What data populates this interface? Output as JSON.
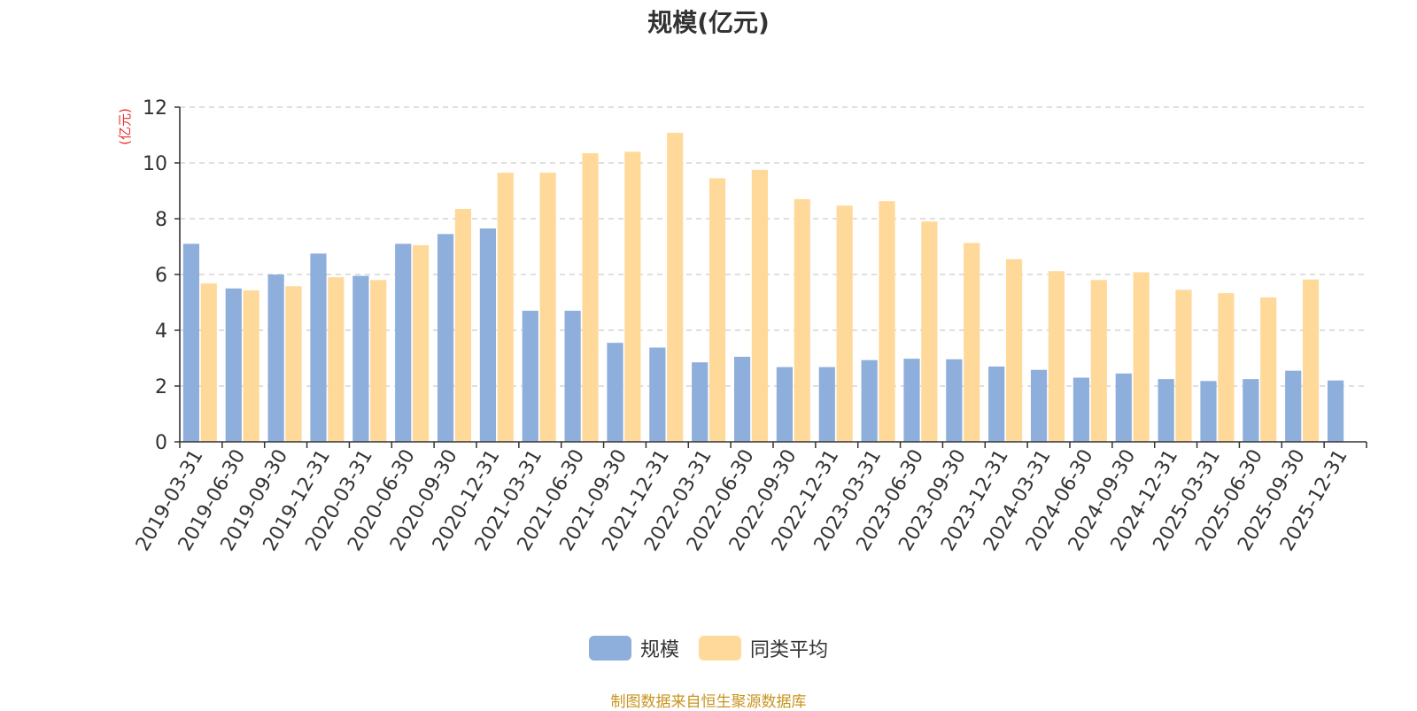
{
  "chart_data": {
    "type": "bar",
    "title": "规模(亿元)",
    "ylabel": "(亿元)",
    "ylim": [
      0,
      12
    ],
    "yticks": [
      0,
      2,
      4,
      6,
      8,
      10,
      12
    ],
    "grid": true,
    "legend_position": "bottom-center",
    "categories": [
      "2019-03-31",
      "2019-06-30",
      "2019-09-30",
      "2019-12-31",
      "2020-03-31",
      "2020-06-30",
      "2020-09-30",
      "2020-12-31",
      "2021-03-31",
      "2021-06-30",
      "2021-09-30",
      "2021-12-31",
      "2022-03-31",
      "2022-06-30",
      "2022-09-30",
      "2022-12-31",
      "2023-03-31",
      "2023-06-30",
      "2023-09-30",
      "2023-12-31",
      "2024-03-31",
      "2024-06-30",
      "2024-09-30",
      "2024-12-31",
      "2025-03-31",
      "2025-06-30",
      "2025-09-30",
      "2025-12-31"
    ],
    "series": [
      {
        "name": "规模",
        "color": "#8eaedb",
        "values": [
          7.1,
          5.5,
          6.0,
          6.75,
          5.95,
          7.1,
          7.45,
          7.65,
          4.7,
          4.7,
          3.55,
          3.38,
          2.85,
          3.05,
          2.68,
          2.68,
          2.93,
          2.98,
          2.96,
          2.7,
          2.58,
          2.3,
          2.45,
          2.25,
          2.18,
          2.25,
          2.55,
          2.2
        ]
      },
      {
        "name": "同类平均",
        "color": "#ffd99a",
        "values": [
          5.68,
          5.43,
          5.58,
          5.9,
          5.8,
          7.05,
          8.35,
          9.65,
          9.65,
          10.35,
          10.4,
          11.08,
          9.45,
          9.75,
          8.7,
          8.47,
          8.63,
          7.9,
          7.13,
          6.55,
          6.12,
          5.8,
          6.08,
          5.45,
          5.33,
          5.18,
          5.82,
          null
        ]
      }
    ],
    "source_note": "制图数据来自恒生聚源数据库"
  }
}
